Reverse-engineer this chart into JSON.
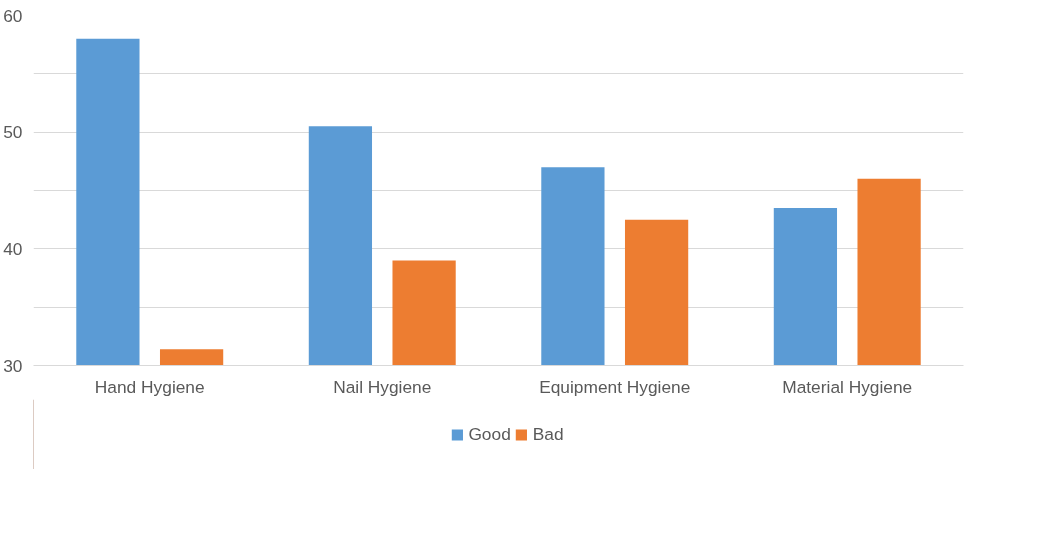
{
  "chart_data": {
    "type": "bar",
    "categories": [
      "Hand Hygiene",
      "Nail Hygiene",
      "Equipment Hygiene",
      "Material Hygiene"
    ],
    "series": [
      {
        "name": "Good",
        "color": "#5b9bd5",
        "values": [
          58,
          50.5,
          47,
          43.5
        ]
      },
      {
        "name": "Bad",
        "color": "#ed7d31",
        "values": [
          31.4,
          39,
          42.5,
          46
        ]
      }
    ],
    "ylim": [
      30,
      60
    ],
    "yticks": [
      30,
      {
        "value": 35,
        "label": null
      },
      40,
      {
        "value": 45,
        "label": null
      },
      50,
      {
        "value": 55,
        "label": null
      },
      60
    ],
    "grid": "y",
    "legend": "bottom"
  }
}
